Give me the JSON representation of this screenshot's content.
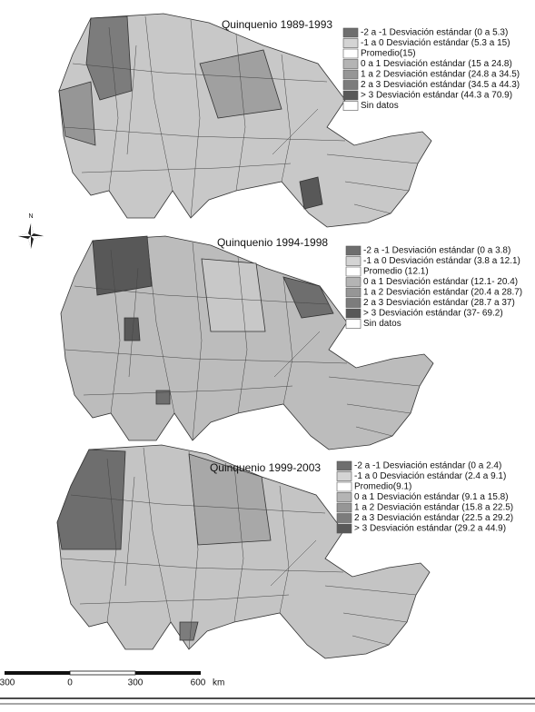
{
  "panels": [
    {
      "title": "Quinquenio 1989-1993",
      "legend": [
        {
          "label": "-2 a -1 Desviación estándar (0 a 5.3)",
          "color": "#6e6e6e"
        },
        {
          "label": "-1 a 0 Desviación estándar (5.3 a 15)",
          "color": "#d4d4d4"
        },
        {
          "label": "Promedio(15)",
          "color": "#ffffff"
        },
        {
          "label": "0 a 1 Desviación estándar (15 a 24.8)",
          "color": "#b4b4b4"
        },
        {
          "label": "1 a 2 Desviación estándar (24.8 a 34.5)",
          "color": "#969696"
        },
        {
          "label": "2 a 3 Desviación estándar (34.5 a 44.3)",
          "color": "#7c7c7c"
        },
        {
          "label": "> 3 Desviación estándar (44.3 a 70.9)",
          "color": "#585858"
        },
        {
          "label": "Sin datos",
          "color": "#ffffff"
        }
      ]
    },
    {
      "title": "Quinquenio 1994-1998",
      "legend": [
        {
          "label": "-2 a -1 Desviación estándar (0 a 3.8)",
          "color": "#6e6e6e"
        },
        {
          "label": "-1 a 0 Desviación estándar (3.8 a 12.1)",
          "color": "#d4d4d4"
        },
        {
          "label": "Promedio (12.1)",
          "color": "#ffffff"
        },
        {
          "label": "0 a 1 Desviación estándar (12.1- 20.4)",
          "color": "#b4b4b4"
        },
        {
          "label": "1 a 2 Desviación estándar (20.4 a 28.7)",
          "color": "#969696"
        },
        {
          "label": "2 a 3 Desviación estándar (28.7 a 37)",
          "color": "#7c7c7c"
        },
        {
          "label": "> 3 Desviación estándar (37- 69.2)",
          "color": "#585858"
        },
        {
          "label": "Sin datos",
          "color": "#ffffff"
        }
      ]
    },
    {
      "title": "Quinquenio 1999-2003",
      "legend": [
        {
          "label": "-2 a -1 Desviación estándar (0 a 2.4)",
          "color": "#6e6e6e"
        },
        {
          "label": "-1 a 0 Desviación estándar (2.4 a 9.1)",
          "color": "#d4d4d4"
        },
        {
          "label": "Promedio(9.1)",
          "color": "#ffffff"
        },
        {
          "label": "0 a 1 Desviación estándar (9.1 a 15.8)",
          "color": "#b4b4b4"
        },
        {
          "label": "1 a 2 Desviación estándar (15.8 a 22.5)",
          "color": "#969696"
        },
        {
          "label": "2 a 3 Desviación estándar (22.5 a 29.2)",
          "color": "#7c7c7c"
        },
        {
          "label": "> 3 Desviación estándar (29.2 a 44.9)",
          "color": "#585858"
        }
      ]
    }
  ],
  "compass": {
    "label": "N"
  },
  "scale_bar": {
    "labels": [
      "300",
      "0",
      "300",
      "600"
    ],
    "unit": "km"
  }
}
